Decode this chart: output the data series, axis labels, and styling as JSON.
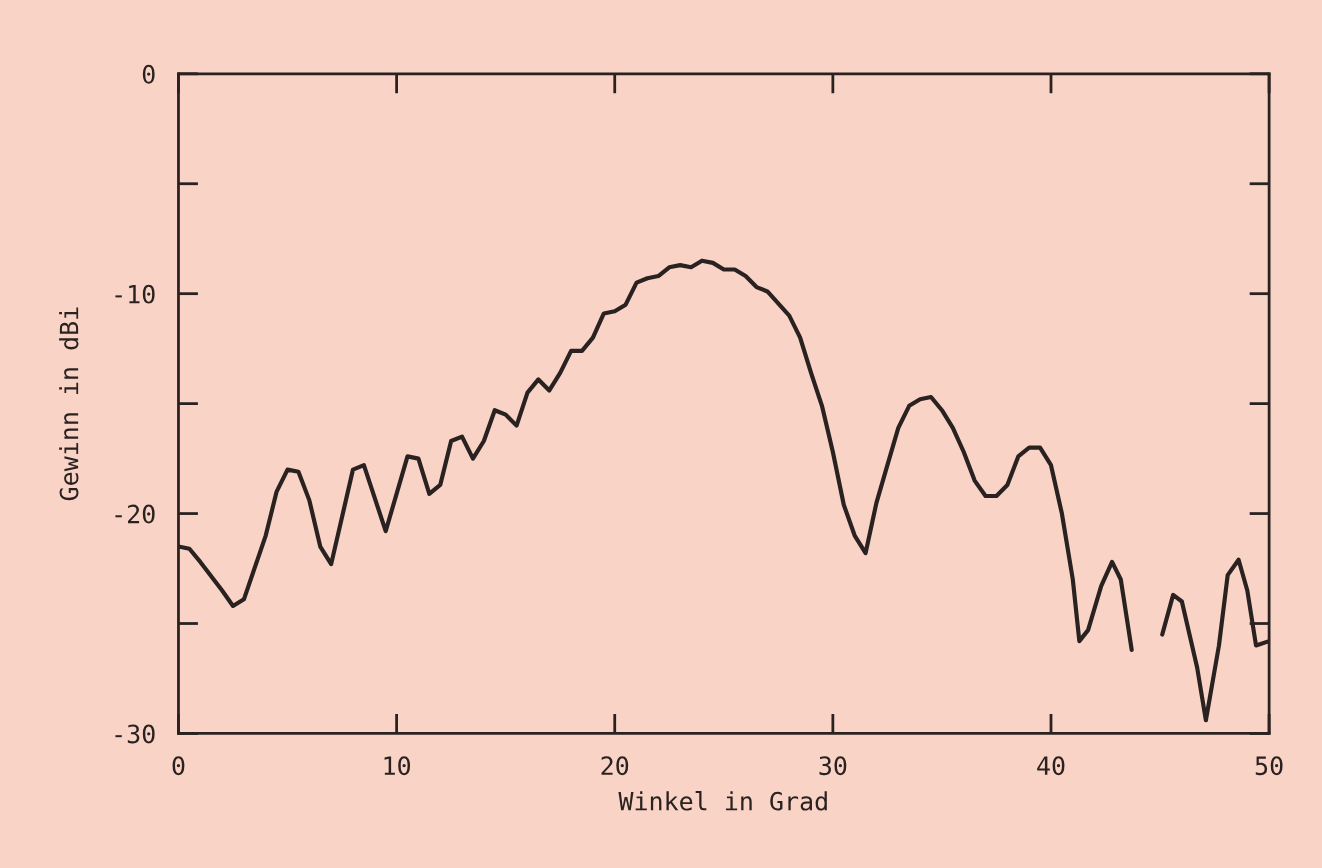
{
  "chart_data": {
    "type": "line",
    "xlabel": "Winkel in Grad",
    "ylabel": "Gewinn in dBi",
    "x": [
      0,
      0.5,
      1,
      2,
      2.5,
      3,
      4,
      4.5,
      5,
      5.5,
      6,
      6.5,
      7,
      8,
      8.5,
      9,
      9.5,
      10.5,
      11,
      11.5,
      12,
      12.5,
      13,
      13.5,
      14,
      14.5,
      15,
      15.5,
      16,
      16.5,
      17,
      17.5,
      18,
      18.5,
      19,
      19.5,
      20,
      20.5,
      21,
      21.5,
      22,
      22.5,
      23,
      23.5,
      24,
      24.5,
      25,
      25.5,
      26,
      26.5,
      27,
      28,
      28.5,
      29,
      29.5,
      30,
      30.5,
      31,
      31.5,
      32,
      32.5,
      33,
      33.5,
      34,
      34.5,
      35,
      35.5,
      36,
      36.5,
      37,
      37.5,
      38,
      38.5,
      39,
      39.5,
      40,
      40.5,
      41,
      41.3,
      41.7,
      42.3,
      42.8,
      43.2,
      43.7,
      44.4,
      45.1,
      45.6,
      46,
      46.7,
      47.1,
      47.7,
      48.1,
      48.6,
      49,
      49.4,
      50
    ],
    "series": [
      {
        "color": "#2a2220",
        "values": [
          -21.5,
          -21.6,
          -22.2,
          -23.5,
          -24.2,
          -23.9,
          -21,
          -19,
          -18,
          -18.1,
          -19.4,
          -21.5,
          -22.3,
          -18,
          -17.8,
          -19.3,
          -20.8,
          -17.4,
          -17.5,
          -19.1,
          -18.7,
          -16.7,
          -16.5,
          -17.5,
          -16.7,
          -15.3,
          -15.5,
          -16,
          -14.5,
          -13.9,
          -14.4,
          -13.6,
          -12.6,
          -12.6,
          -12,
          -10.9,
          -10.8,
          -10.5,
          -9.5,
          -9.3,
          -9.2,
          -8.8,
          -8.7,
          -8.8,
          -8.5,
          -8.6,
          -8.9,
          -8.9,
          -9.2,
          -9.7,
          -9.9,
          -11,
          -12,
          -13.6,
          -15.1,
          -17.2,
          -19.6,
          -21,
          -21.8,
          -19.5,
          -17.8,
          -16.1,
          -15.1,
          -14.8,
          -14.7,
          -15.3,
          -16.1,
          -17.2,
          -18.5,
          -19.2,
          -19.2,
          -18.7,
          -17.4,
          -17,
          -17,
          -17.8,
          -20,
          -23,
          -25.8,
          -25.3,
          -23.3,
          -22.2,
          -23,
          -26.2,
          null,
          -25.5,
          -23.7,
          -24,
          -27,
          -29.4,
          -26,
          -22.8,
          -22.1,
          -23.5,
          -26,
          -25.8
        ]
      }
    ],
    "xlim": [
      0,
      50
    ],
    "ylim": [
      -30,
      0
    ],
    "xticks": [
      0,
      10,
      20,
      30,
      40,
      50
    ],
    "yticks": [
      -30,
      {
        "value": -25,
        "label": null
      },
      -20,
      {
        "value": -15,
        "label": null
      },
      -10,
      {
        "value": -5,
        "label": null
      },
      0
    ],
    "grid": false,
    "marker": "none",
    "line_style": "solid"
  }
}
